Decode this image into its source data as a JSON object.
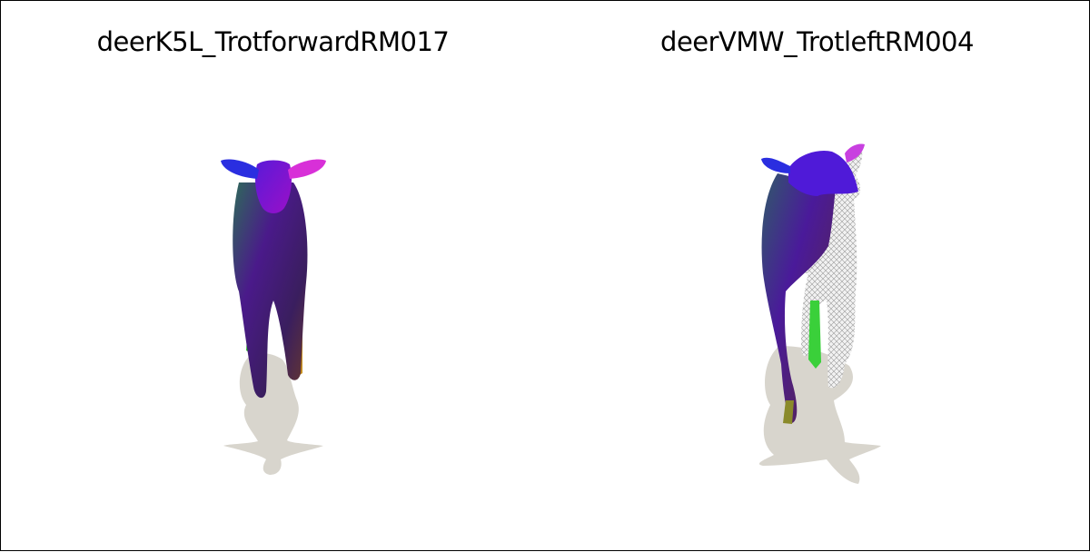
{
  "panels": [
    {
      "title": "deerK5L_TrotforwardRM017"
    },
    {
      "title": "deerVMW_TrotleftRM004"
    }
  ],
  "colors": {
    "shadow": "#d6d3cb",
    "border": "#000000",
    "background": "#ffffff"
  }
}
